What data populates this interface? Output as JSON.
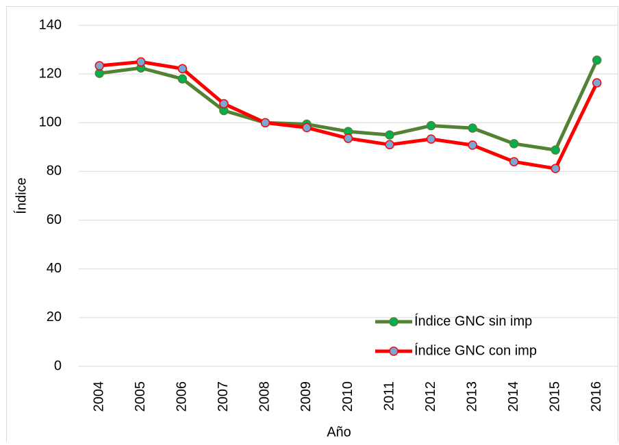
{
  "chart_data": {
    "type": "line",
    "x_label": "Año",
    "y_label": "Índice",
    "categories": [
      "2004",
      "2005",
      "2006",
      "2007",
      "2008",
      "2009",
      "2010",
      "2011",
      "2012",
      "2013",
      "2014",
      "2015",
      "2016"
    ],
    "series": [
      {
        "name": "Índice GNC sin imp",
        "color": "#548235",
        "marker_fill": "#00b050",
        "values": [
          120.3,
          122.5,
          118,
          105,
          100,
          99.4,
          96.4,
          95,
          98.8,
          97.8,
          91.4,
          88.8,
          125.7
        ]
      },
      {
        "name": "Índice GNC con imp",
        "color": "#ff0000",
        "marker_fill": "#7ba7d6",
        "values": [
          123.4,
          125,
          122.2,
          107.8,
          100,
          98,
          93.6,
          91,
          93.3,
          90.8,
          84,
          81.2,
          116.4
        ]
      }
    ],
    "ylim": [
      0,
      140
    ],
    "yticks": [
      0,
      20,
      40,
      60,
      80,
      100,
      120,
      140
    ],
    "grid": true,
    "legend": "lower right"
  }
}
